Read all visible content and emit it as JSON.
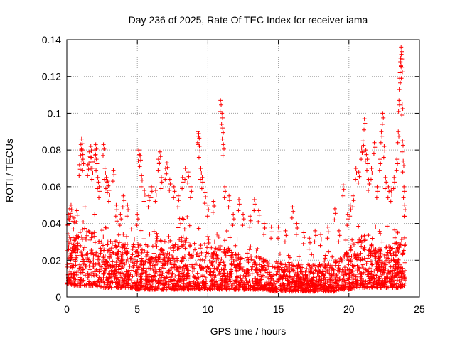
{
  "chart_data": {
    "type": "scatter",
    "title": "Day 236 of 2025, Rate Of TEC Index for receiver iama",
    "xlabel": "GPS time / hours",
    "ylabel": "ROTI / TECUs",
    "xlim": [
      0,
      25
    ],
    "ylim": [
      0,
      0.14
    ],
    "xticks": [
      0,
      5,
      10,
      15,
      20,
      25
    ],
    "yticks": [
      0,
      0.02,
      0.04,
      0.06,
      0.08,
      0.1,
      0.12,
      0.14
    ],
    "grid": true,
    "marker": "+",
    "color": "#ff0000",
    "series": [
      {
        "values_note_x_hours_y_tecus": true,
        "points": [
          [
            0.1,
            0.045
          ],
          [
            0.2,
            0.048
          ],
          [
            0.3,
            0.05
          ],
          [
            0.5,
            0.043
          ],
          [
            0.7,
            0.047
          ],
          [
            0.9,
            0.072
          ],
          [
            1.0,
            0.083
          ],
          [
            1.05,
            0.086
          ],
          [
            1.1,
            0.08
          ],
          [
            1.15,
            0.075
          ],
          [
            1.5,
            0.072
          ],
          [
            1.6,
            0.079
          ],
          [
            1.7,
            0.082
          ],
          [
            1.75,
            0.076
          ],
          [
            1.8,
            0.07
          ],
          [
            2.0,
            0.08
          ],
          [
            2.05,
            0.083
          ],
          [
            2.1,
            0.075
          ],
          [
            2.2,
            0.065
          ],
          [
            2.3,
            0.06
          ],
          [
            2.6,
            0.083
          ],
          [
            2.7,
            0.07
          ],
          [
            2.8,
            0.065
          ],
          [
            2.9,
            0.063
          ],
          [
            3.0,
            0.058
          ],
          [
            3.3,
            0.069
          ],
          [
            3.5,
            0.05
          ],
          [
            3.8,
            0.045
          ],
          [
            4.0,
            0.055
          ],
          [
            4.3,
            0.05
          ],
          [
            5.0,
            0.045
          ],
          [
            5.1,
            0.08
          ],
          [
            5.2,
            0.077
          ],
          [
            5.3,
            0.066
          ],
          [
            5.5,
            0.058
          ],
          [
            5.8,
            0.055
          ],
          [
            6.0,
            0.06
          ],
          [
            6.3,
            0.058
          ],
          [
            6.5,
            0.075
          ],
          [
            6.6,
            0.079
          ],
          [
            6.7,
            0.065
          ],
          [
            7.0,
            0.07
          ],
          [
            7.1,
            0.073
          ],
          [
            7.3,
            0.064
          ],
          [
            7.6,
            0.06
          ],
          [
            7.9,
            0.055
          ],
          [
            8.2,
            0.065
          ],
          [
            8.4,
            0.07
          ],
          [
            8.6,
            0.068
          ],
          [
            8.8,
            0.06
          ],
          [
            9.3,
            0.09
          ],
          [
            9.35,
            0.089
          ],
          [
            9.4,
            0.082
          ],
          [
            9.5,
            0.07
          ],
          [
            9.6,
            0.065
          ],
          [
            9.8,
            0.057
          ],
          [
            10.0,
            0.05
          ],
          [
            10.4,
            0.052
          ],
          [
            10.9,
            0.107
          ],
          [
            11.0,
            0.1
          ],
          [
            11.05,
            0.092
          ],
          [
            11.1,
            0.083
          ],
          [
            11.2,
            0.06
          ],
          [
            11.5,
            0.055
          ],
          [
            11.8,
            0.045
          ],
          [
            12.2,
            0.053
          ],
          [
            12.5,
            0.045
          ],
          [
            13.0,
            0.044
          ],
          [
            13.3,
            0.053
          ],
          [
            13.6,
            0.047
          ],
          [
            14.0,
            0.04
          ],
          [
            14.5,
            0.038
          ],
          [
            15.0,
            0.038
          ],
          [
            15.5,
            0.036
          ],
          [
            16.0,
            0.049
          ],
          [
            16.3,
            0.04
          ],
          [
            16.8,
            0.035
          ],
          [
            17.2,
            0.032
          ],
          [
            17.6,
            0.036
          ],
          [
            18.0,
            0.034
          ],
          [
            18.5,
            0.038
          ],
          [
            19.0,
            0.048
          ],
          [
            19.3,
            0.036
          ],
          [
            19.6,
            0.061
          ],
          [
            19.9,
            0.045
          ],
          [
            20.1,
            0.05
          ],
          [
            20.3,
            0.055
          ],
          [
            20.5,
            0.07
          ],
          [
            20.7,
            0.068
          ],
          [
            20.9,
            0.081
          ],
          [
            21.0,
            0.085
          ],
          [
            21.1,
            0.097
          ],
          [
            21.2,
            0.08
          ],
          [
            21.3,
            0.075
          ],
          [
            21.4,
            0.064
          ],
          [
            21.6,
            0.07
          ],
          [
            21.8,
            0.084
          ],
          [
            22.0,
            0.06
          ],
          [
            22.2,
            0.075
          ],
          [
            22.3,
            0.09
          ],
          [
            22.4,
            0.1
          ],
          [
            22.5,
            0.082
          ],
          [
            22.6,
            0.065
          ],
          [
            22.8,
            0.06
          ],
          [
            23.0,
            0.058
          ],
          [
            23.2,
            0.065
          ],
          [
            23.4,
            0.075
          ],
          [
            23.5,
            0.09
          ],
          [
            23.55,
            0.107
          ],
          [
            23.6,
            0.119
          ],
          [
            23.65,
            0.128
          ],
          [
            23.7,
            0.136
          ],
          [
            23.72,
            0.132
          ],
          [
            23.75,
            0.125
          ],
          [
            23.78,
            0.105
          ],
          [
            23.8,
            0.085
          ],
          [
            23.85,
            0.074
          ],
          [
            23.9,
            0.06
          ],
          [
            23.95,
            0.05
          ]
        ]
      }
    ],
    "envelope": {
      "x": [
        0,
        0.5,
        1,
        1.5,
        2,
        2.5,
        3,
        3.5,
        4,
        4.5,
        5,
        5.5,
        6,
        6.5,
        7,
        7.5,
        8,
        8.5,
        9,
        9.5,
        10,
        10.5,
        11,
        11.5,
        12,
        12.5,
        13,
        13.5,
        14,
        14.5,
        15,
        15.5,
        16,
        16.5,
        17,
        17.5,
        18,
        18.5,
        19,
        19.5,
        20,
        20.5,
        21,
        21.5,
        22,
        22.5,
        23,
        23.5,
        24
      ],
      "ymin": [
        0.007,
        0.006,
        0.006,
        0.006,
        0.006,
        0.005,
        0.005,
        0.005,
        0.005,
        0.005,
        0.004,
        0.004,
        0.004,
        0.004,
        0.004,
        0.004,
        0.004,
        0.004,
        0.004,
        0.004,
        0.004,
        0.004,
        0.004,
        0.004,
        0.004,
        0.004,
        0.004,
        0.004,
        0.004,
        0.003,
        0.003,
        0.003,
        0.003,
        0.003,
        0.003,
        0.003,
        0.003,
        0.003,
        0.003,
        0.004,
        0.004,
        0.005,
        0.005,
        0.005,
        0.005,
        0.005,
        0.005,
        0.005,
        0.006
      ],
      "ymax": [
        0.04,
        0.045,
        0.05,
        0.05,
        0.048,
        0.045,
        0.042,
        0.042,
        0.04,
        0.038,
        0.04,
        0.042,
        0.045,
        0.044,
        0.042,
        0.042,
        0.045,
        0.045,
        0.04,
        0.042,
        0.038,
        0.037,
        0.04,
        0.035,
        0.032,
        0.03,
        0.03,
        0.03,
        0.028,
        0.026,
        0.026,
        0.026,
        0.025,
        0.025,
        0.024,
        0.024,
        0.024,
        0.025,
        0.028,
        0.03,
        0.035,
        0.045,
        0.045,
        0.04,
        0.038,
        0.038,
        0.04,
        0.042,
        0.045
      ]
    }
  }
}
